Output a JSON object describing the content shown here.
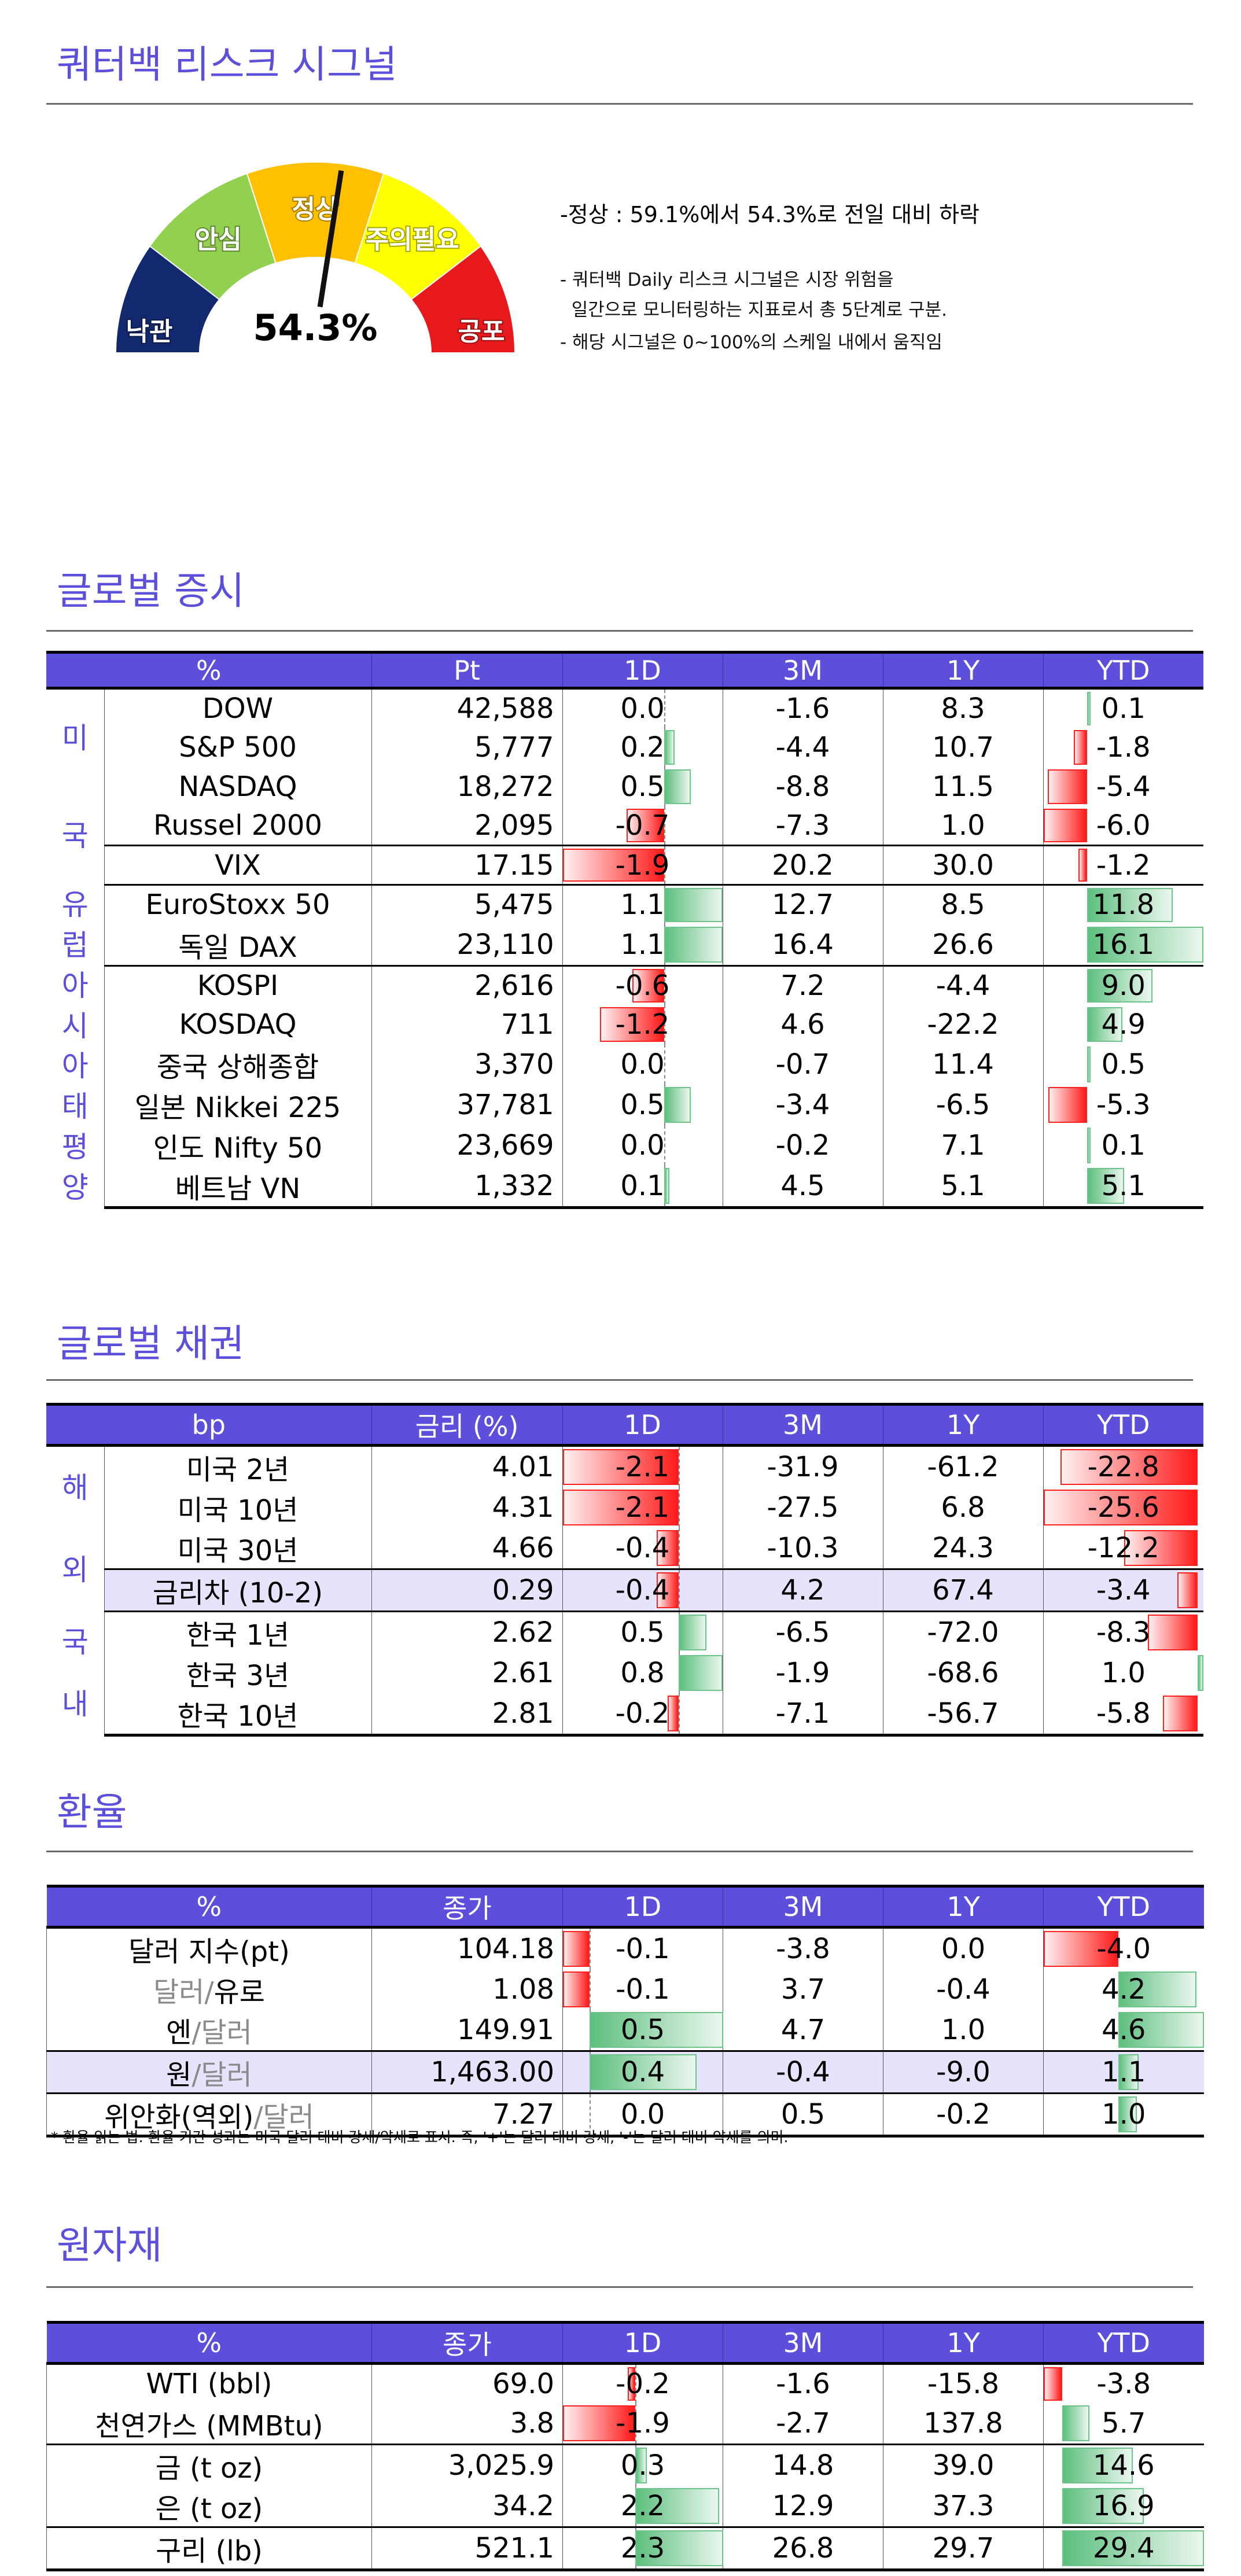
{
  "risk_signal": {
    "title": "쿼터백 리스크 시그널",
    "value_label": "54.3%",
    "value_pct": 54.3,
    "levels": [
      {
        "label": "낙관",
        "color": "#13296f"
      },
      {
        "label": "안심",
        "color": "#92d050"
      },
      {
        "label": "정상",
        "color": "#ffc000"
      },
      {
        "label": "주의필요",
        "color": "#ffff00"
      },
      {
        "label": "공포",
        "color": "#e8191c"
      }
    ],
    "summary": "-정상 : 59.1%에서 54.3%로 전일 대비 하락",
    "notes": [
      "- 쿼터백 Daily 리스크 시그널은 시장 위험을",
      "  일간으로 모니터링하는 지표로서 총 5단계로 구분.",
      "- 해당 시그널은 0~100%의 스케일 내에서 움직임"
    ]
  },
  "colors": {
    "accent": "#5b4fdc",
    "negative": "#ff1a1a",
    "positive": "#5dbf7e",
    "highlight_row": "#e6e4fc"
  },
  "equity": {
    "title": "글로벌 증시",
    "headers": [
      "%",
      "Pt",
      "1D",
      "3M",
      "1Y",
      "YTD"
    ],
    "groups": [
      {
        "label": "미국",
        "rows": [
          {
            "name": "DOW",
            "val": "42,588",
            "d1": 0.0,
            "m3": -1.6,
            "y1": 8.3,
            "ytd": 0.1
          },
          {
            "name": "S&P 500",
            "val": "5,777",
            "d1": 0.2,
            "m3": -4.4,
            "y1": 10.7,
            "ytd": -1.8
          },
          {
            "name": "NASDAQ",
            "val": "18,272",
            "d1": 0.5,
            "m3": -8.8,
            "y1": 11.5,
            "ytd": -5.4
          },
          {
            "name": "Russel 2000",
            "val": "2,095",
            "d1": -0.7,
            "m3": -7.3,
            "y1": 1.0,
            "ytd": -6.0
          },
          {
            "name": "VIX",
            "val": "17.15",
            "d1": -1.9,
            "m3": 20.2,
            "y1": 30.0,
            "ytd": -1.2
          }
        ]
      },
      {
        "label": "유럽",
        "rows": [
          {
            "name": "EuroStoxx 50",
            "val": "5,475",
            "d1": 1.1,
            "m3": 12.7,
            "y1": 8.5,
            "ytd": 11.8
          },
          {
            "name": "독일 DAX",
            "val": "23,110",
            "d1": 1.1,
            "m3": 16.4,
            "y1": 26.6,
            "ytd": 16.1
          }
        ]
      },
      {
        "label": "아시아태평양",
        "rows": [
          {
            "name": "KOSPI",
            "val": "2,616",
            "d1": -0.6,
            "m3": 7.2,
            "y1": -4.4,
            "ytd": 9.0
          },
          {
            "name": "KOSDAQ",
            "val": "711",
            "d1": -1.2,
            "m3": 4.6,
            "y1": -22.2,
            "ytd": 4.9
          },
          {
            "name": "중국 상해종합",
            "val": "3,370",
            "d1": 0.0,
            "m3": -0.7,
            "y1": 11.4,
            "ytd": 0.5
          },
          {
            "name": "일본 Nikkei 225",
            "val": "37,781",
            "d1": 0.5,
            "m3": -3.4,
            "y1": -6.5,
            "ytd": -5.3
          },
          {
            "name": "인도 Nifty 50",
            "val": "23,669",
            "d1": 0.0,
            "m3": -0.2,
            "y1": 7.1,
            "ytd": 0.1
          },
          {
            "name": "베트남 VN",
            "val": "1,332",
            "d1": 0.1,
            "m3": 4.5,
            "y1": 5.1,
            "ytd": 5.1
          }
        ]
      }
    ]
  },
  "bonds": {
    "title": "글로벌 채권",
    "headers": [
      "bp",
      "금리 (%)",
      "1D",
      "3M",
      "1Y",
      "YTD"
    ],
    "groups": [
      {
        "label": "해외",
        "rows": [
          {
            "name": "미국 2년",
            "val": "4.01",
            "d1": -2.1,
            "m3": -31.9,
            "y1": -61.2,
            "ytd": -22.8
          },
          {
            "name": "미국 10년",
            "val": "4.31",
            "d1": -2.1,
            "m3": -27.5,
            "y1": 6.8,
            "ytd": -25.6
          },
          {
            "name": "미국 30년",
            "val": "4.66",
            "d1": -0.4,
            "m3": -10.3,
            "y1": 24.3,
            "ytd": -12.2
          },
          {
            "name": "금리차 (10-2)",
            "val": "0.29",
            "d1": -0.4,
            "m3": 4.2,
            "y1": 67.4,
            "ytd": -3.4
          }
        ]
      },
      {
        "label": "국내",
        "rows": [
          {
            "name": "한국 1년",
            "val": "2.62",
            "d1": 0.5,
            "m3": -6.5,
            "y1": -72.0,
            "ytd": -8.3
          },
          {
            "name": "한국 3년",
            "val": "2.61",
            "d1": 0.8,
            "m3": -1.9,
            "y1": -68.6,
            "ytd": 1.0
          },
          {
            "name": "한국 10년",
            "val": "2.81",
            "d1": -0.2,
            "m3": -7.1,
            "y1": -56.7,
            "ytd": -5.8
          }
        ]
      }
    ]
  },
  "fx": {
    "title": "환율",
    "headers": [
      "%",
      "종가",
      "1D",
      "3M",
      "1Y",
      "YTD"
    ],
    "rows": [
      {
        "name_parts": [
          {
            "t": "달러 지수(pt)",
            "muted": false
          }
        ],
        "val": "104.18",
        "d1": -0.1,
        "m3": -3.8,
        "y1": 0.0,
        "ytd": -4.0
      },
      {
        "name_parts": [
          {
            "t": "달러/",
            "muted": true
          },
          {
            "t": "유로",
            "muted": false
          }
        ],
        "val": "1.08",
        "d1": -0.1,
        "m3": 3.7,
        "y1": -0.4,
        "ytd": 4.2
      },
      {
        "name_parts": [
          {
            "t": "엔",
            "muted": false
          },
          {
            "t": "/달러",
            "muted": true
          }
        ],
        "val": "149.91",
        "d1": 0.5,
        "m3": 4.7,
        "y1": 1.0,
        "ytd": 4.6
      },
      {
        "name_parts": [
          {
            "t": "원",
            "muted": false
          },
          {
            "t": "/달러",
            "muted": true
          }
        ],
        "val": "1,463.00",
        "d1": 0.4,
        "m3": -0.4,
        "y1": -9.0,
        "ytd": 1.1
      },
      {
        "name_parts": [
          {
            "t": "위안화(역외)",
            "muted": false
          },
          {
            "t": "/달러",
            "muted": true
          }
        ],
        "val": "7.27",
        "d1": 0.0,
        "m3": 0.5,
        "y1": -0.2,
        "ytd": 1.0
      }
    ],
    "footnote": "* 환율 읽는 법: 환율 기간 성과는 미국 달러 대비 강세/약세로 표시. 즉, '+'는 달러 대비 강세, '-'는 달러 대비 약세를 의미."
  },
  "commodities": {
    "title": "원자재",
    "headers": [
      "%",
      "종가",
      "1D",
      "3M",
      "1Y",
      "YTD"
    ],
    "rows": [
      {
        "name": "WTI (bbl)",
        "val": "69.0",
        "d1": -0.2,
        "m3": -1.6,
        "y1": -15.8,
        "ytd": -3.8
      },
      {
        "name": "천연가스 (MMBtu)",
        "val": "3.8",
        "d1": -1.9,
        "m3": -2.7,
        "y1": 137.8,
        "ytd": 5.7
      },
      {
        "name": "금 (t oz)",
        "val": "3,025.9",
        "d1": 0.3,
        "m3": 14.8,
        "y1": 39.0,
        "ytd": 14.6
      },
      {
        "name": "은 (t oz)",
        "val": "34.2",
        "d1": 2.2,
        "m3": 12.9,
        "y1": 37.3,
        "ytd": 16.9
      },
      {
        "name": "구리 (lb)",
        "val": "521.1",
        "d1": 2.3,
        "m3": 26.8,
        "y1": 29.7,
        "ytd": 29.4
      }
    ]
  }
}
